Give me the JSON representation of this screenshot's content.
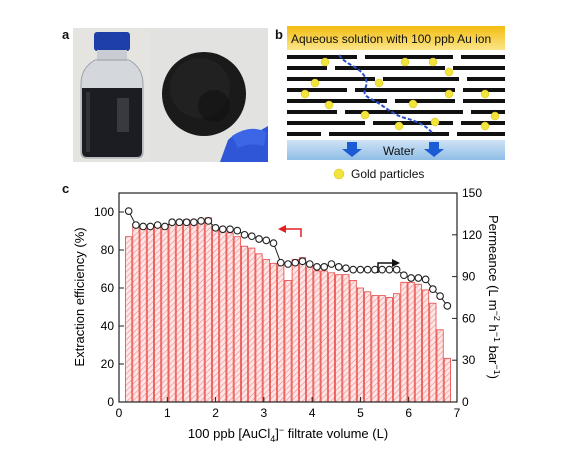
{
  "panels": {
    "a": "a",
    "b": "b",
    "c": "c"
  },
  "schematic": {
    "top_label": "Aqueous solution with 100 ppb Au ion",
    "water_label": "Water",
    "legend_label": "Gold particles",
    "colors": {
      "top_band": "#f6c51a",
      "gold": "#f2e43b",
      "water": "#a9cdee",
      "arrow": "#1b5bd6"
    }
  },
  "chart_data": {
    "type": "bar",
    "xlabel_parts": [
      "100 ppb [AuCl",
      "4",
      "]",
      "−",
      " filtrate volume (L)"
    ],
    "ylabel": "Extraction efficiency (%)",
    "y2label_parts": [
      "Permeance (L m",
      "−2",
      " h",
      "−1",
      " bar",
      "−1",
      ")"
    ],
    "xlim": [
      0,
      7
    ],
    "ylim": [
      0,
      110
    ],
    "y2lim": [
      0,
      150
    ],
    "xticks": [
      "0",
      "1",
      "2",
      "3",
      "4",
      "5",
      "6",
      "7"
    ],
    "yticks": [
      "0",
      "20",
      "40",
      "60",
      "80",
      "100"
    ],
    "y2ticks": [
      "0",
      "30",
      "60",
      "90",
      "120",
      "150"
    ],
    "bar_width": 0.13,
    "bars": {
      "name": "Extraction efficiency",
      "x": [
        0.2,
        0.35,
        0.5,
        0.65,
        0.8,
        0.95,
        1.1,
        1.25,
        1.4,
        1.55,
        1.7,
        1.85,
        2.0,
        2.15,
        2.3,
        2.45,
        2.6,
        2.75,
        2.9,
        3.05,
        3.2,
        3.35,
        3.5,
        3.65,
        3.8,
        3.95,
        4.1,
        4.25,
        4.4,
        4.55,
        4.7,
        4.85,
        5.0,
        5.15,
        5.3,
        5.45,
        5.6,
        5.75,
        5.9,
        6.05,
        6.2,
        6.35,
        6.5,
        6.65,
        6.8
      ],
      "values": [
        87,
        94,
        92,
        91,
        92,
        91,
        94,
        94,
        96,
        95,
        96,
        97,
        91,
        90,
        89,
        87,
        82,
        81,
        78,
        75,
        73,
        72,
        64,
        75,
        76,
        71,
        69,
        69,
        68,
        67,
        67,
        64,
        60,
        58,
        56,
        56,
        55,
        57,
        63,
        63,
        62,
        59,
        52,
        38,
        23
      ]
    },
    "line": {
      "name": "Permeance",
      "x": [
        0.2,
        0.35,
        0.5,
        0.65,
        0.8,
        0.95,
        1.1,
        1.25,
        1.4,
        1.55,
        1.7,
        1.85,
        2.0,
        2.15,
        2.3,
        2.45,
        2.6,
        2.75,
        2.9,
        3.05,
        3.2,
        3.35,
        3.5,
        3.65,
        3.8,
        3.95,
        4.1,
        4.25,
        4.4,
        4.55,
        4.7,
        4.85,
        5.0,
        5.15,
        5.3,
        5.45,
        5.6,
        5.75,
        5.9,
        6.05,
        6.2,
        6.35,
        6.5,
        6.65,
        6.8
      ],
      "values": [
        137,
        127,
        126,
        126,
        127,
        126,
        129,
        129,
        129,
        129,
        130,
        130,
        125,
        124,
        124,
        123,
        120,
        119,
        117,
        116,
        114,
        100,
        99,
        100,
        101,
        99,
        97,
        97,
        99,
        97,
        96,
        95,
        95,
        95,
        95,
        95,
        95,
        95,
        91,
        89,
        89,
        88,
        81,
        76,
        69
      ]
    },
    "colors": {
      "bar_edge": "#e84545",
      "bar_fill": "#fde6e4",
      "bar_hatch": "#ee8a8a",
      "line": "#222222",
      "marker_fill": "#ffffff",
      "arrow_left": "#e02020",
      "arrow_right": "#111111"
    }
  }
}
